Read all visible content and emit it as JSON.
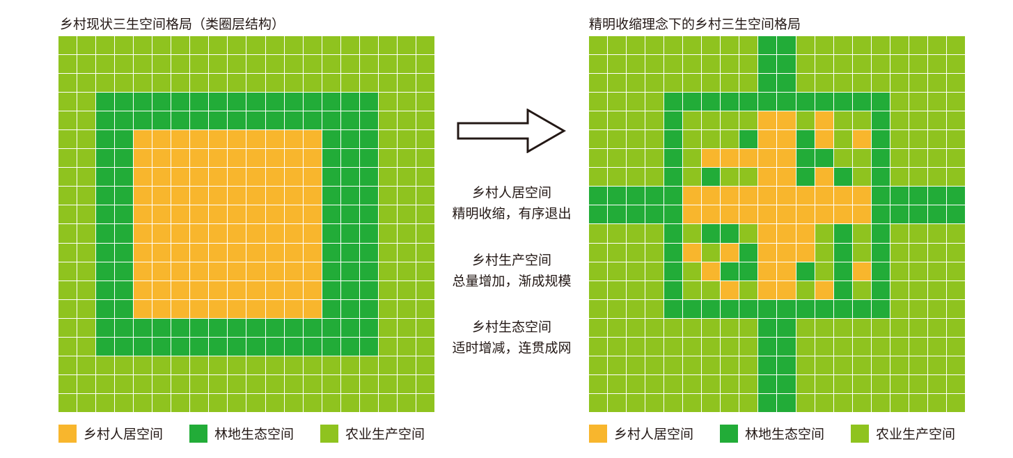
{
  "colors": {
    "residential": "#f8b62d",
    "forest": "#22ac38",
    "agriculture": "#8fc31f",
    "grid_line": "#ffffff",
    "text": "#231815"
  },
  "left_panel": {
    "title": "乡村现状三生空间格局（类圈层结构）",
    "legend": [
      {
        "key": "residential",
        "label": "乡村人居空间"
      },
      {
        "key": "forest",
        "label": "林地生态空间"
      },
      {
        "key": "agriculture",
        "label": "农业生产空间"
      }
    ],
    "grid_rows": [
      "AAAAAAAAAAAAAAAAAAAA",
      "AAAAAAAAAAAAAAAAAAAA",
      "AAAAAAAAAAAAAAAAAAAA",
      "AAFFFFFFFFFFFFFFFAAA",
      "AAFFFFFFFFFFFFFFFAAA",
      "AAFFRRRRRRRRRRFFFAAA",
      "AAFFRRRRRRRRRRFFFAAA",
      "AAFFRRRRRRRRRRFFFAAA",
      "AAFFRRRRRRRRRRFFFAAA",
      "AAFFRRRRRRRRRRFFFAAA",
      "AAFFRRRRRRRRRRFFFAAA",
      "AAFFRRRRRRRRRRFFFAAA",
      "AAFFRRRRRRRRRRFFFAAA",
      "AAFFRRRRRRRRRRFFFAAA",
      "AAFFRRRRRRRRRRFFFAAA",
      "AAFFFFFFFFFFFFFFFAAA",
      "AAFFFFFFFFFFFFFFFAAA",
      "AAAAAAAAAAAAAAAAAAAA",
      "AAAAAAAAAAAAAAAAAAAA",
      "AAAAAAAAAAAAAAAAAAAA"
    ]
  },
  "right_panel": {
    "title": "精明收缩理念下的乡村三生空间格局",
    "legend": [
      {
        "key": "residential",
        "label": "乡村人居空间"
      },
      {
        "key": "forest",
        "label": "林地生态空间"
      },
      {
        "key": "agriculture",
        "label": "农业生产空间"
      }
    ],
    "grid_rows": [
      "AAAAAAAAAFFAAAAAAAAA",
      "AAAAAAAAAFFAAAAAAAAA",
      "AAAAAAAAAFFAAAAAAAAA",
      "AAAAFFFFFFFFFFFFAAAA",
      "AAAAFAAAARRARAAFAAAA",
      "AAAAFAAAFRRFRARFAAAA",
      "AAAAFARRRRRFFAAFAAAA",
      "AAAAFAFAARRFRFAFAAAA",
      "FFFFFRRRRRRRRRRFFFFF",
      "FFFFFRRRRRRRRRRFFFFF",
      "AAAAFAFFARRRAFAFAAAA",
      "AAAAFRARFRRRAFAFAAAA",
      "AAAAFARFFRRFAFRFAAAA",
      "AAAAFAARARRARFAFAAAA",
      "AAAAFFFFFFFFFFFFAAAA",
      "AAAAAAAAAFFAAAAAAAAA",
      "AAAAAAAAAFFAAAAAAAAA",
      "AAAAAAAAAFFAAAAAAAAA",
      "AAAAAAAAAFFAAAAAAAAA",
      "AAAAAAAAAFFAAAAAAAAA"
    ]
  },
  "center": {
    "residential_title": "乡村人居空间",
    "residential_desc": "精明收缩，有序退出",
    "production_title": "乡村生产空间",
    "production_desc": "总量增加，渐成规模",
    "ecology_title": "乡村生态空间",
    "ecology_desc": "适时增减，连贯成网"
  },
  "arrow_icon": "arrow-right-outline-icon"
}
